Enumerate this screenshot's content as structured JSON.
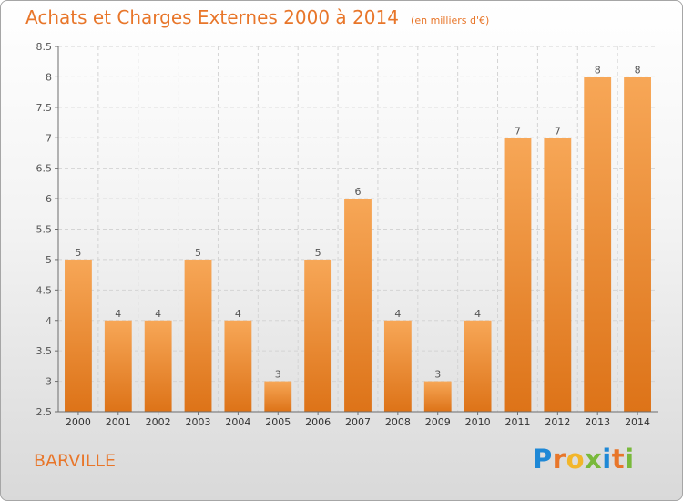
{
  "title": "Achats et Charges Externes 2000 à 2014",
  "unit": "(en milliers d'€)",
  "commune": "BARVILLE",
  "logo_letters": [
    {
      "ch": "P",
      "color": "#1e88d6"
    },
    {
      "ch": "r",
      "color": "#e8762a"
    },
    {
      "ch": "o",
      "color": "#f2b62a"
    },
    {
      "ch": "x",
      "color": "#79b93b"
    },
    {
      "ch": "i",
      "color": "#1e88d6"
    },
    {
      "ch": "t",
      "color": "#e8762a"
    },
    {
      "ch": "i",
      "color": "#79b93b"
    }
  ],
  "chart_data": {
    "type": "bar",
    "title": "Achats et Charges Externes 2000 à 2014",
    "subtitle": "(en milliers d'€)",
    "xlabel": "",
    "ylabel": "",
    "categories": [
      "2000",
      "2001",
      "2002",
      "2003",
      "2004",
      "2005",
      "2006",
      "2007",
      "2008",
      "2009",
      "2010",
      "2011",
      "2012",
      "2013",
      "2014"
    ],
    "values": [
      5,
      4,
      4,
      5,
      4,
      3,
      5,
      6,
      4,
      3,
      4,
      7,
      7,
      8,
      8
    ],
    "data_labels": [
      "5",
      "4",
      "4",
      "5",
      "4",
      "3",
      "5",
      "6",
      "4",
      "3",
      "4",
      "7",
      "7",
      "8",
      "8"
    ],
    "ylim": [
      2.5,
      8.5
    ],
    "yticks": [
      "2.5",
      "3",
      "3.5",
      "4",
      "4.5",
      "5",
      "5.5",
      "6",
      "6.5",
      "7",
      "7.5",
      "8",
      "8.5"
    ],
    "grid": true,
    "legend": "none",
    "colors": {
      "bar_light": "#f7a757",
      "bar_dark": "#dd7318",
      "grid": "#d4d4d4",
      "axis": "#6d6d6d",
      "label": "#555555"
    }
  }
}
